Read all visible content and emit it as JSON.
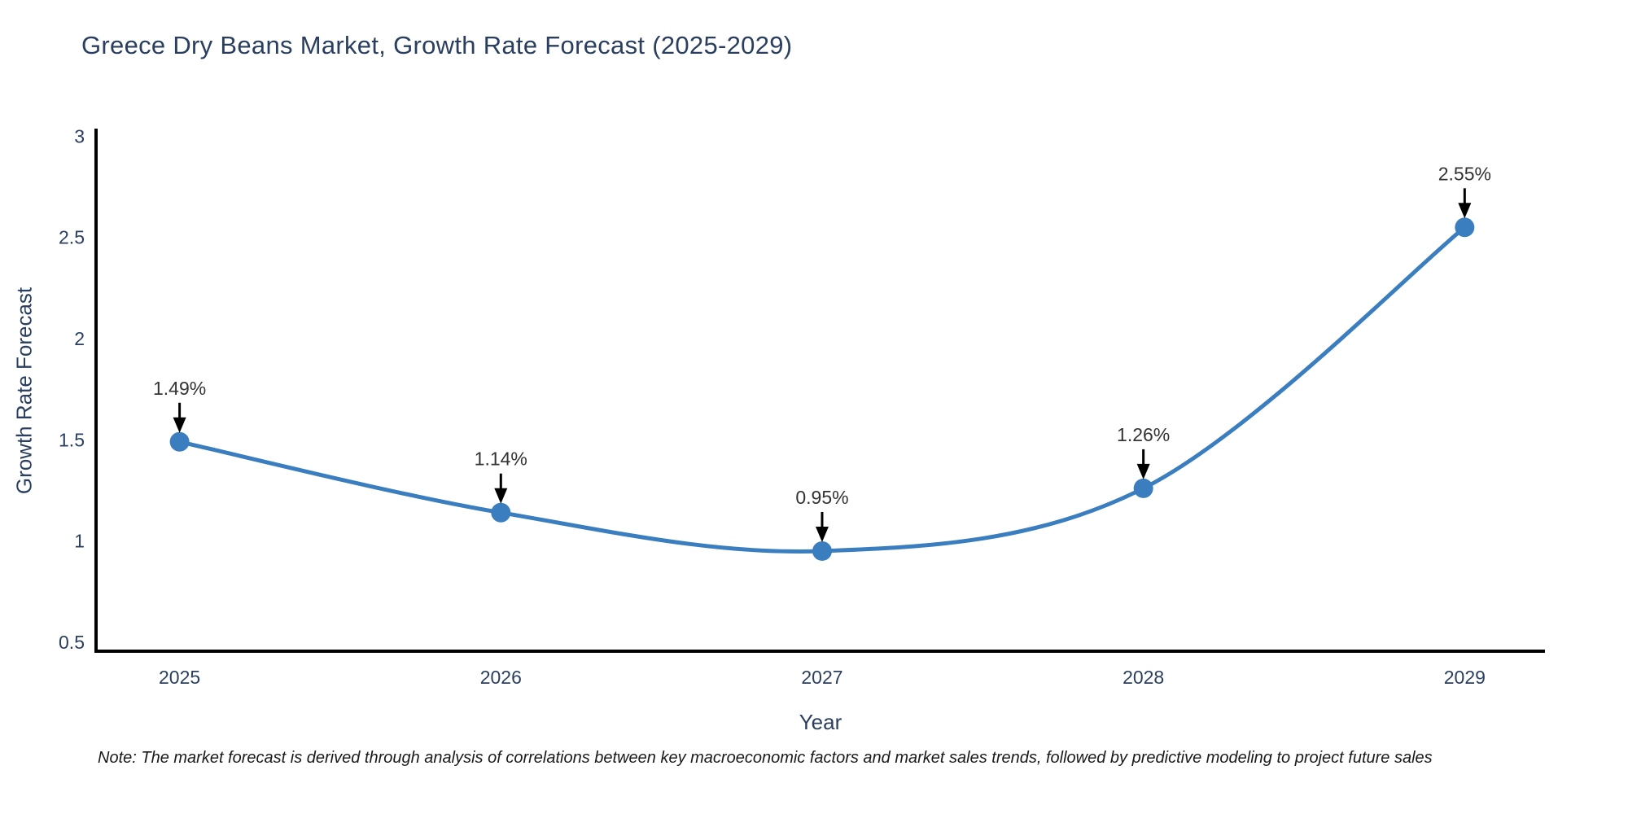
{
  "chart_data": {
    "type": "line",
    "title": "Greece Dry Beans Market, Growth Rate Forecast (2025-2029)",
    "xlabel": "Year",
    "ylabel": "Growth Rate Forecast",
    "x": [
      2025,
      2026,
      2027,
      2028,
      2029
    ],
    "y": [
      1.49,
      1.14,
      0.95,
      1.26,
      2.55
    ],
    "point_labels": [
      "1.49%",
      "1.14%",
      "0.95%",
      "1.26%",
      "2.55%"
    ],
    "xticks": [
      "2025",
      "2026",
      "2027",
      "2028",
      "2029"
    ],
    "yticks": [
      0.5,
      1,
      1.5,
      2,
      2.5,
      3
    ],
    "ytick_labels": [
      "0.5",
      "1",
      "1.5",
      "2",
      "2.5",
      "3"
    ],
    "xlim": [
      2024.74,
      2029.25
    ],
    "ylim": [
      0.455,
      3.03
    ],
    "line_shape": "spline",
    "grid": false,
    "legend": false,
    "colors": {
      "line": "#3a7ebf",
      "marker": "#3a7ebf",
      "axis_line": "#000000",
      "tick_text": "#2a3f5f",
      "title_text": "#2a3f5f",
      "annotation_text": "#333333",
      "annotation_arrow": "#000000",
      "background": "#ffffff"
    }
  },
  "note": "Note: The market forecast is derived through analysis of correlations between key macroeconomic factors and market sales trends, followed by predictive modeling to project future sales"
}
